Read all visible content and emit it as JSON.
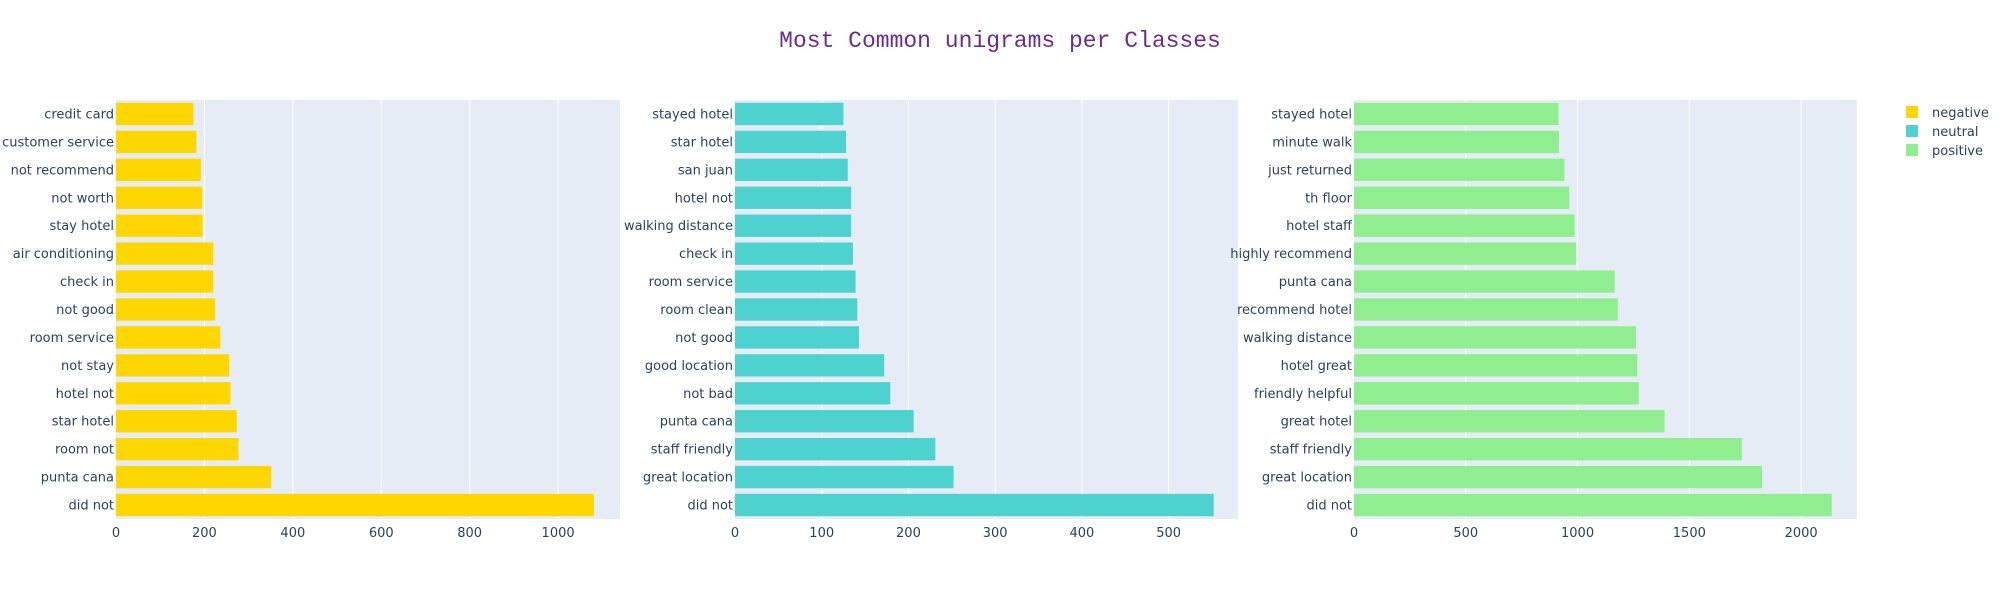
{
  "title": "Most Common unigrams per Classes",
  "chart_data": [
    {
      "type": "bar",
      "orientation": "horizontal",
      "name": "negative",
      "color": "#FFD700",
      "categories": [
        "credit card",
        "customer service",
        "not recommend",
        "not worth",
        "stay hotel",
        "air conditioning",
        "check in",
        "not good",
        "room service",
        "not stay",
        "hotel not",
        "star hotel",
        "room not",
        "punta cana",
        "did not"
      ],
      "values": [
        175,
        182,
        192,
        195,
        196,
        220,
        220,
        224,
        236,
        256,
        259,
        273,
        277,
        351,
        1081
      ],
      "xlim": [
        0,
        1140
      ],
      "xticks": [
        0,
        200,
        400,
        600,
        800,
        1000
      ],
      "xlabel": "",
      "ylabel": ""
    },
    {
      "type": "bar",
      "orientation": "horizontal",
      "name": "neutral",
      "color": "#4DD2CF",
      "categories": [
        "stayed hotel",
        "star hotel",
        "san juan",
        "hotel not",
        "walking distance",
        "check in",
        "room service",
        "room clean",
        "not good",
        "good location",
        "not bad",
        "punta cana",
        "staff friendly",
        "great location",
        "did not"
      ],
      "values": [
        125,
        128,
        130,
        134,
        134,
        136,
        139,
        141,
        143,
        172,
        179,
        206,
        231,
        252,
        552
      ],
      "xlim": [
        0,
        580
      ],
      "xticks": [
        0,
        100,
        200,
        300,
        400,
        500
      ],
      "xlabel": "",
      "ylabel": ""
    },
    {
      "type": "bar",
      "orientation": "horizontal",
      "name": "positive",
      "color": "#90EE90",
      "categories": [
        "stayed hotel",
        "minute walk",
        "just returned",
        "th floor",
        "hotel staff",
        "highly recommend",
        "punta cana",
        "recommend hotel",
        "walking distance",
        "hotel great",
        "friendly helpful",
        "great hotel",
        "staff friendly",
        "great location",
        "did not"
      ],
      "values": [
        915,
        917,
        941,
        963,
        987,
        993,
        1166,
        1180,
        1261,
        1267,
        1274,
        1389,
        1735,
        1825,
        2137
      ],
      "xlim": [
        0,
        2250
      ],
      "xticks": [
        0,
        500,
        1000,
        1500,
        2000
      ],
      "xlabel": "",
      "ylabel": ""
    }
  ],
  "legend": {
    "position": "top-right",
    "items": [
      {
        "label": "negative",
        "color": "#FFD700"
      },
      {
        "label": "neutral",
        "color": "#4DD2CF"
      },
      {
        "label": "positive",
        "color": "#90EE90"
      }
    ]
  },
  "style": {
    "plot_bg": "#E5ECF6",
    "grid_color": "#FFFFFF",
    "text_color": "#2a3f5f",
    "title_color": "#6a2c91"
  }
}
